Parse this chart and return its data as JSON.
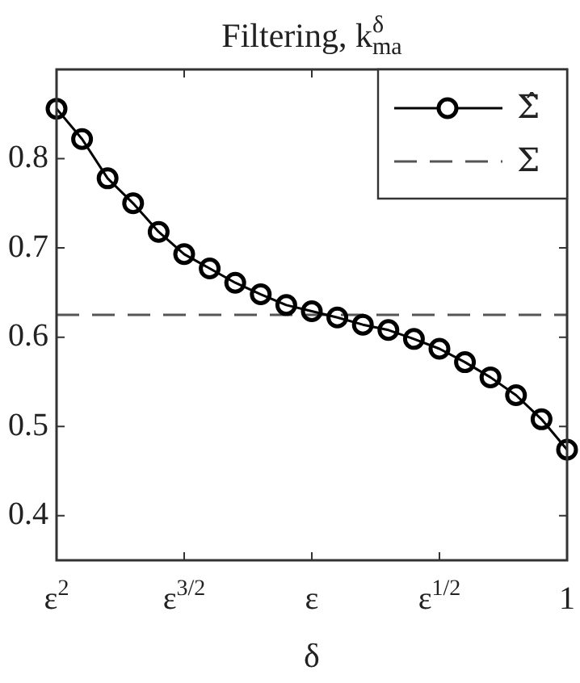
{
  "chart_data": {
    "type": "line",
    "title": "Filtering, k$_{ma}$$^{δ}$",
    "xlabel": "δ",
    "categories": [
      "ε$^{2}$",
      null,
      null,
      null,
      null,
      "ε$^{3/2}$",
      null,
      null,
      null,
      null,
      "ε",
      null,
      null,
      null,
      null,
      "ε$^{1/2}$",
      null,
      null,
      null,
      null,
      "1"
    ],
    "series": [
      {
        "name": "Σ̂",
        "color": "#000000",
        "marker": "circle",
        "line_style": "solid",
        "values": [
          0.856,
          0.822,
          0.778,
          0.75,
          0.718,
          0.693,
          0.677,
          0.661,
          0.648,
          0.636,
          0.629,
          0.622,
          0.614,
          0.608,
          0.598,
          0.587,
          0.572,
          0.555,
          0.535,
          0.508,
          0.474
        ]
      },
      {
        "name": "Σ",
        "color": "#555555",
        "marker": "none",
        "line_style": "dashed",
        "values": [
          0.625,
          0.625,
          0.625,
          0.625,
          0.625,
          0.625,
          0.625,
          0.625,
          0.625,
          0.625,
          0.625,
          0.625,
          0.625,
          0.625,
          0.625,
          0.625,
          0.625,
          0.625,
          0.625,
          0.625,
          0.625
        ]
      }
    ],
    "ylim": [
      0.35,
      0.9
    ],
    "yticks": [
      0.4,
      0.5,
      0.6,
      0.7,
      0.8
    ],
    "grid": false,
    "legend": "top right"
  }
}
